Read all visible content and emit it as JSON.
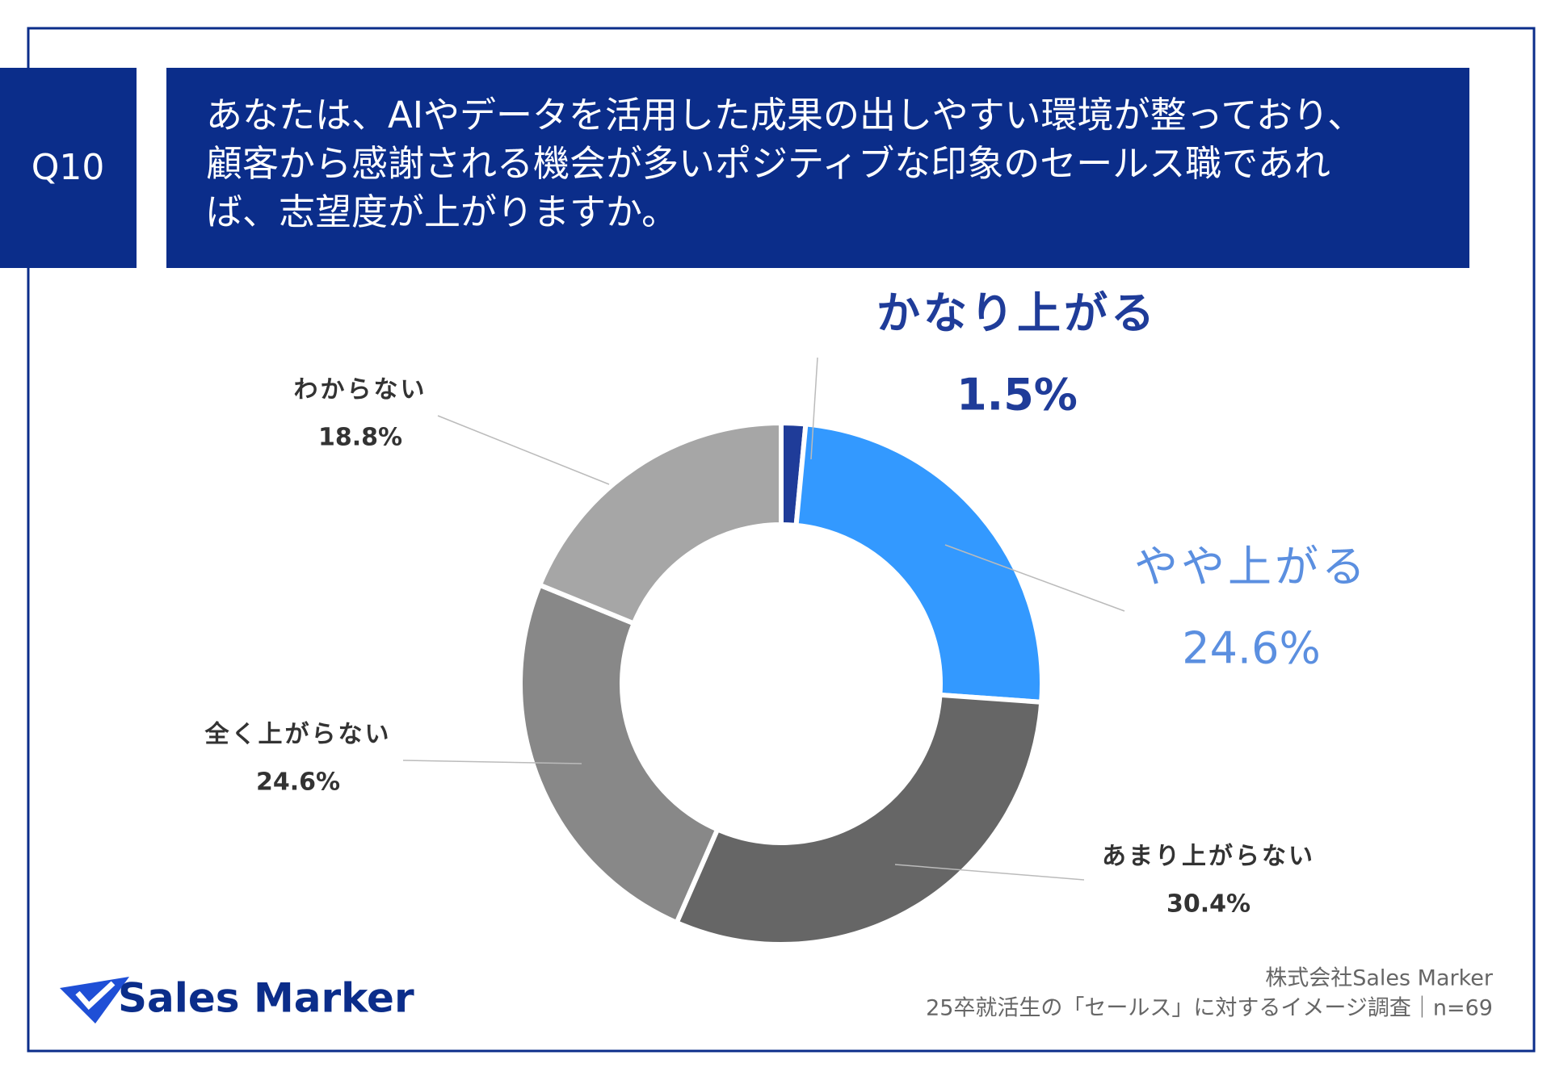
{
  "header": {
    "label": "Q10",
    "lines": [
      "あなたは、AIやデータを活用した成果の出しやすい環境が整っており、",
      "顧客から感謝される機会が多いポジティブな印象のセールス職であれ",
      "ば、志望度が上がりますか。"
    ]
  },
  "chart_data": {
    "type": "donut",
    "categories": [
      "かなり上がる",
      "やや上がる",
      "あまり上がらない",
      "全く上がらない",
      "わからない"
    ],
    "values": [
      1.5,
      24.6,
      30.4,
      24.6,
      18.8
    ],
    "value_labels": [
      "1.5%",
      "24.6%",
      "30.4%",
      "24.6%",
      "18.8%"
    ],
    "colors": [
      "#1f3c99",
      "#3399ff",
      "#666666",
      "#888888",
      "#a6a6a6"
    ]
  },
  "footer": {
    "logo": "Sales Marker",
    "source_lines": [
      "株式会社Sales Marker",
      "25卒就活生の「セールス」に対するイメージ調査｜n=69"
    ]
  }
}
